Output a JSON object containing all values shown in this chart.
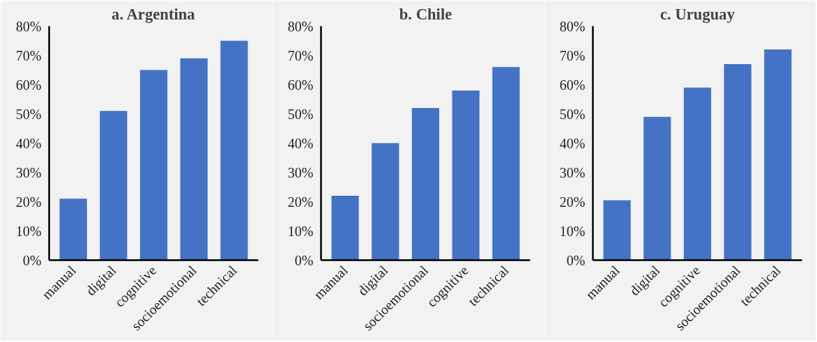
{
  "chart_data": [
    {
      "type": "bar",
      "title": "a. Argentina",
      "categories": [
        "manual",
        "digital",
        "cognitive",
        "socioemotional",
        "technical"
      ],
      "values": [
        21,
        51,
        65,
        69,
        75
      ],
      "color": "#4472c4",
      "ylim": [
        0,
        80
      ],
      "yticks": [
        {
          "value": 0,
          "label": "0%"
        },
        {
          "value": 10,
          "label": "10%"
        },
        {
          "value": 20,
          "label": "20%"
        },
        {
          "value": 30,
          "label": "30%"
        },
        {
          "value": 40,
          "label": "40%"
        },
        {
          "value": 50,
          "label": "50%"
        },
        {
          "value": 60,
          "label": "60%"
        },
        {
          "value": 70,
          "label": "70%"
        },
        {
          "value": 80,
          "label": "80%"
        }
      ],
      "grid": false
    },
    {
      "type": "bar",
      "title": "b. Chile",
      "categories": [
        "manual",
        "digital",
        "socioemotional",
        "cognitive",
        "technical"
      ],
      "values": [
        22,
        40,
        52,
        58,
        66
      ],
      "color": "#4472c4",
      "ylim": [
        0,
        80
      ],
      "yticks": [
        {
          "value": 0,
          "label": "0%"
        },
        {
          "value": 10,
          "label": "10%"
        },
        {
          "value": 20,
          "label": "20%"
        },
        {
          "value": 30,
          "label": "30%"
        },
        {
          "value": 40,
          "label": "40%"
        },
        {
          "value": 50,
          "label": "50%"
        },
        {
          "value": 60,
          "label": "60%"
        },
        {
          "value": 70,
          "label": "70%"
        },
        {
          "value": 80,
          "label": "80%"
        }
      ],
      "grid": false
    },
    {
      "type": "bar",
      "title": "c. Uruguay",
      "categories": [
        "manual",
        "digital",
        "cognitive",
        "socioemotional",
        "technical"
      ],
      "values": [
        20.5,
        49,
        59,
        67,
        72
      ],
      "color": "#4472c4",
      "ylim": [
        0,
        80
      ],
      "yticks": [
        {
          "value": 0,
          "label": "0%"
        },
        {
          "value": 10,
          "label": "10%"
        },
        {
          "value": 20,
          "label": "20%"
        },
        {
          "value": 30,
          "label": "30%"
        },
        {
          "value": 40,
          "label": "40%"
        },
        {
          "value": 50,
          "label": "50%"
        },
        {
          "value": 60,
          "label": "60%"
        },
        {
          "value": 70,
          "label": "70%"
        },
        {
          "value": 80,
          "label": "80%"
        }
      ],
      "grid": false
    }
  ]
}
